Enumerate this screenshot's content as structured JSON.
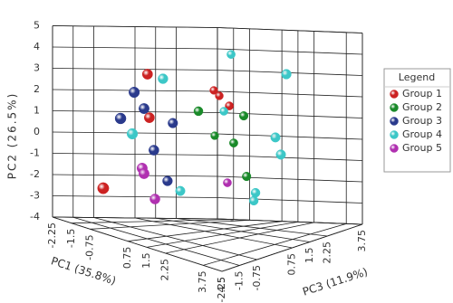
{
  "chart_data": {
    "type": "scatter3d",
    "x_label": "PC1 (35.8%)",
    "y_label": "PC2 (26.5%)",
    "z_label": "PC3 (11.9%)",
    "xlim": [
      -2.25,
      4.5
    ],
    "xticks": [
      -2.25,
      -1.5,
      -0.75,
      0.75,
      1.5,
      2.25,
      3.75,
      4.5
    ],
    "ylim": [
      -4,
      5
    ],
    "yticks": [
      -4,
      -3,
      -2,
      -1,
      0,
      1,
      2,
      3,
      4,
      5
    ],
    "zlim": [
      -2.25,
      3.75
    ],
    "zticks": [
      -2.25,
      -1.5,
      -0.75,
      0.75,
      1.5,
      2.25,
      3.75
    ],
    "grid": true,
    "legend_title": "Legend",
    "legend": "right",
    "series": [
      {
        "name": "Group 1",
        "color": "#cc2222",
        "x": [
          -0.9,
          -0.9,
          -0.9,
          -1.66,
          -1.41,
          -0.95
        ],
        "y": [
          3.09,
          1.04,
          -2.17,
          2.08,
          1.84,
          1.4
        ],
        "z": [
          0.04,
          0.11,
          -1.62,
          3.15,
          3.15,
          3.15
        ]
      },
      {
        "name": "Group 2",
        "color": "#1a8a2a",
        "x": [
          -0.9,
          -1.62,
          -0.29,
          -0.75,
          -0.16
        ],
        "y": [
          1.23,
          -0.05,
          0.98,
          -0.33,
          -1.86
        ],
        "z": [
          1.95,
          3.15,
          3.15,
          3.15,
          3.15
        ]
      },
      {
        "name": "Group 3",
        "color": "#2a3a8c",
        "x": [
          -0.9,
          -0.9,
          -0.9,
          -0.9,
          -0.9,
          -0.9
        ],
        "y": [
          2.27,
          1.07,
          1.48,
          0.73,
          -0.5,
          -1.98
        ],
        "z": [
          -0.46,
          -0.97,
          -0.09,
          0.99,
          0.28,
          0.79
        ]
      },
      {
        "name": "Group 4",
        "color": "#3cc7c7",
        "x": [
          -0.9,
          -0.9,
          -0.9,
          -0.87,
          1.66,
          -1.2,
          1.16,
          1.41,
          0.25,
          0.17
        ],
        "y": [
          2.84,
          0.32,
          -2.48,
          3.83,
          3.08,
          1.13,
          0.07,
          -0.72,
          -2.6,
          -2.98
        ],
        "z": [
          0.62,
          -0.53,
          1.27,
          3.15,
          3.15,
          3.15,
          3.15,
          3.15,
          3.15,
          3.15
        ]
      },
      {
        "name": "Group 5",
        "color": "#b030b0",
        "x": [
          -0.9,
          -0.9,
          -0.9,
          -1.04
        ],
        "y": [
          -1.32,
          -1.58,
          -2.8,
          -2.22
        ],
        "z": [
          -0.16,
          -0.09,
          0.32,
          3.15
        ]
      }
    ]
  }
}
